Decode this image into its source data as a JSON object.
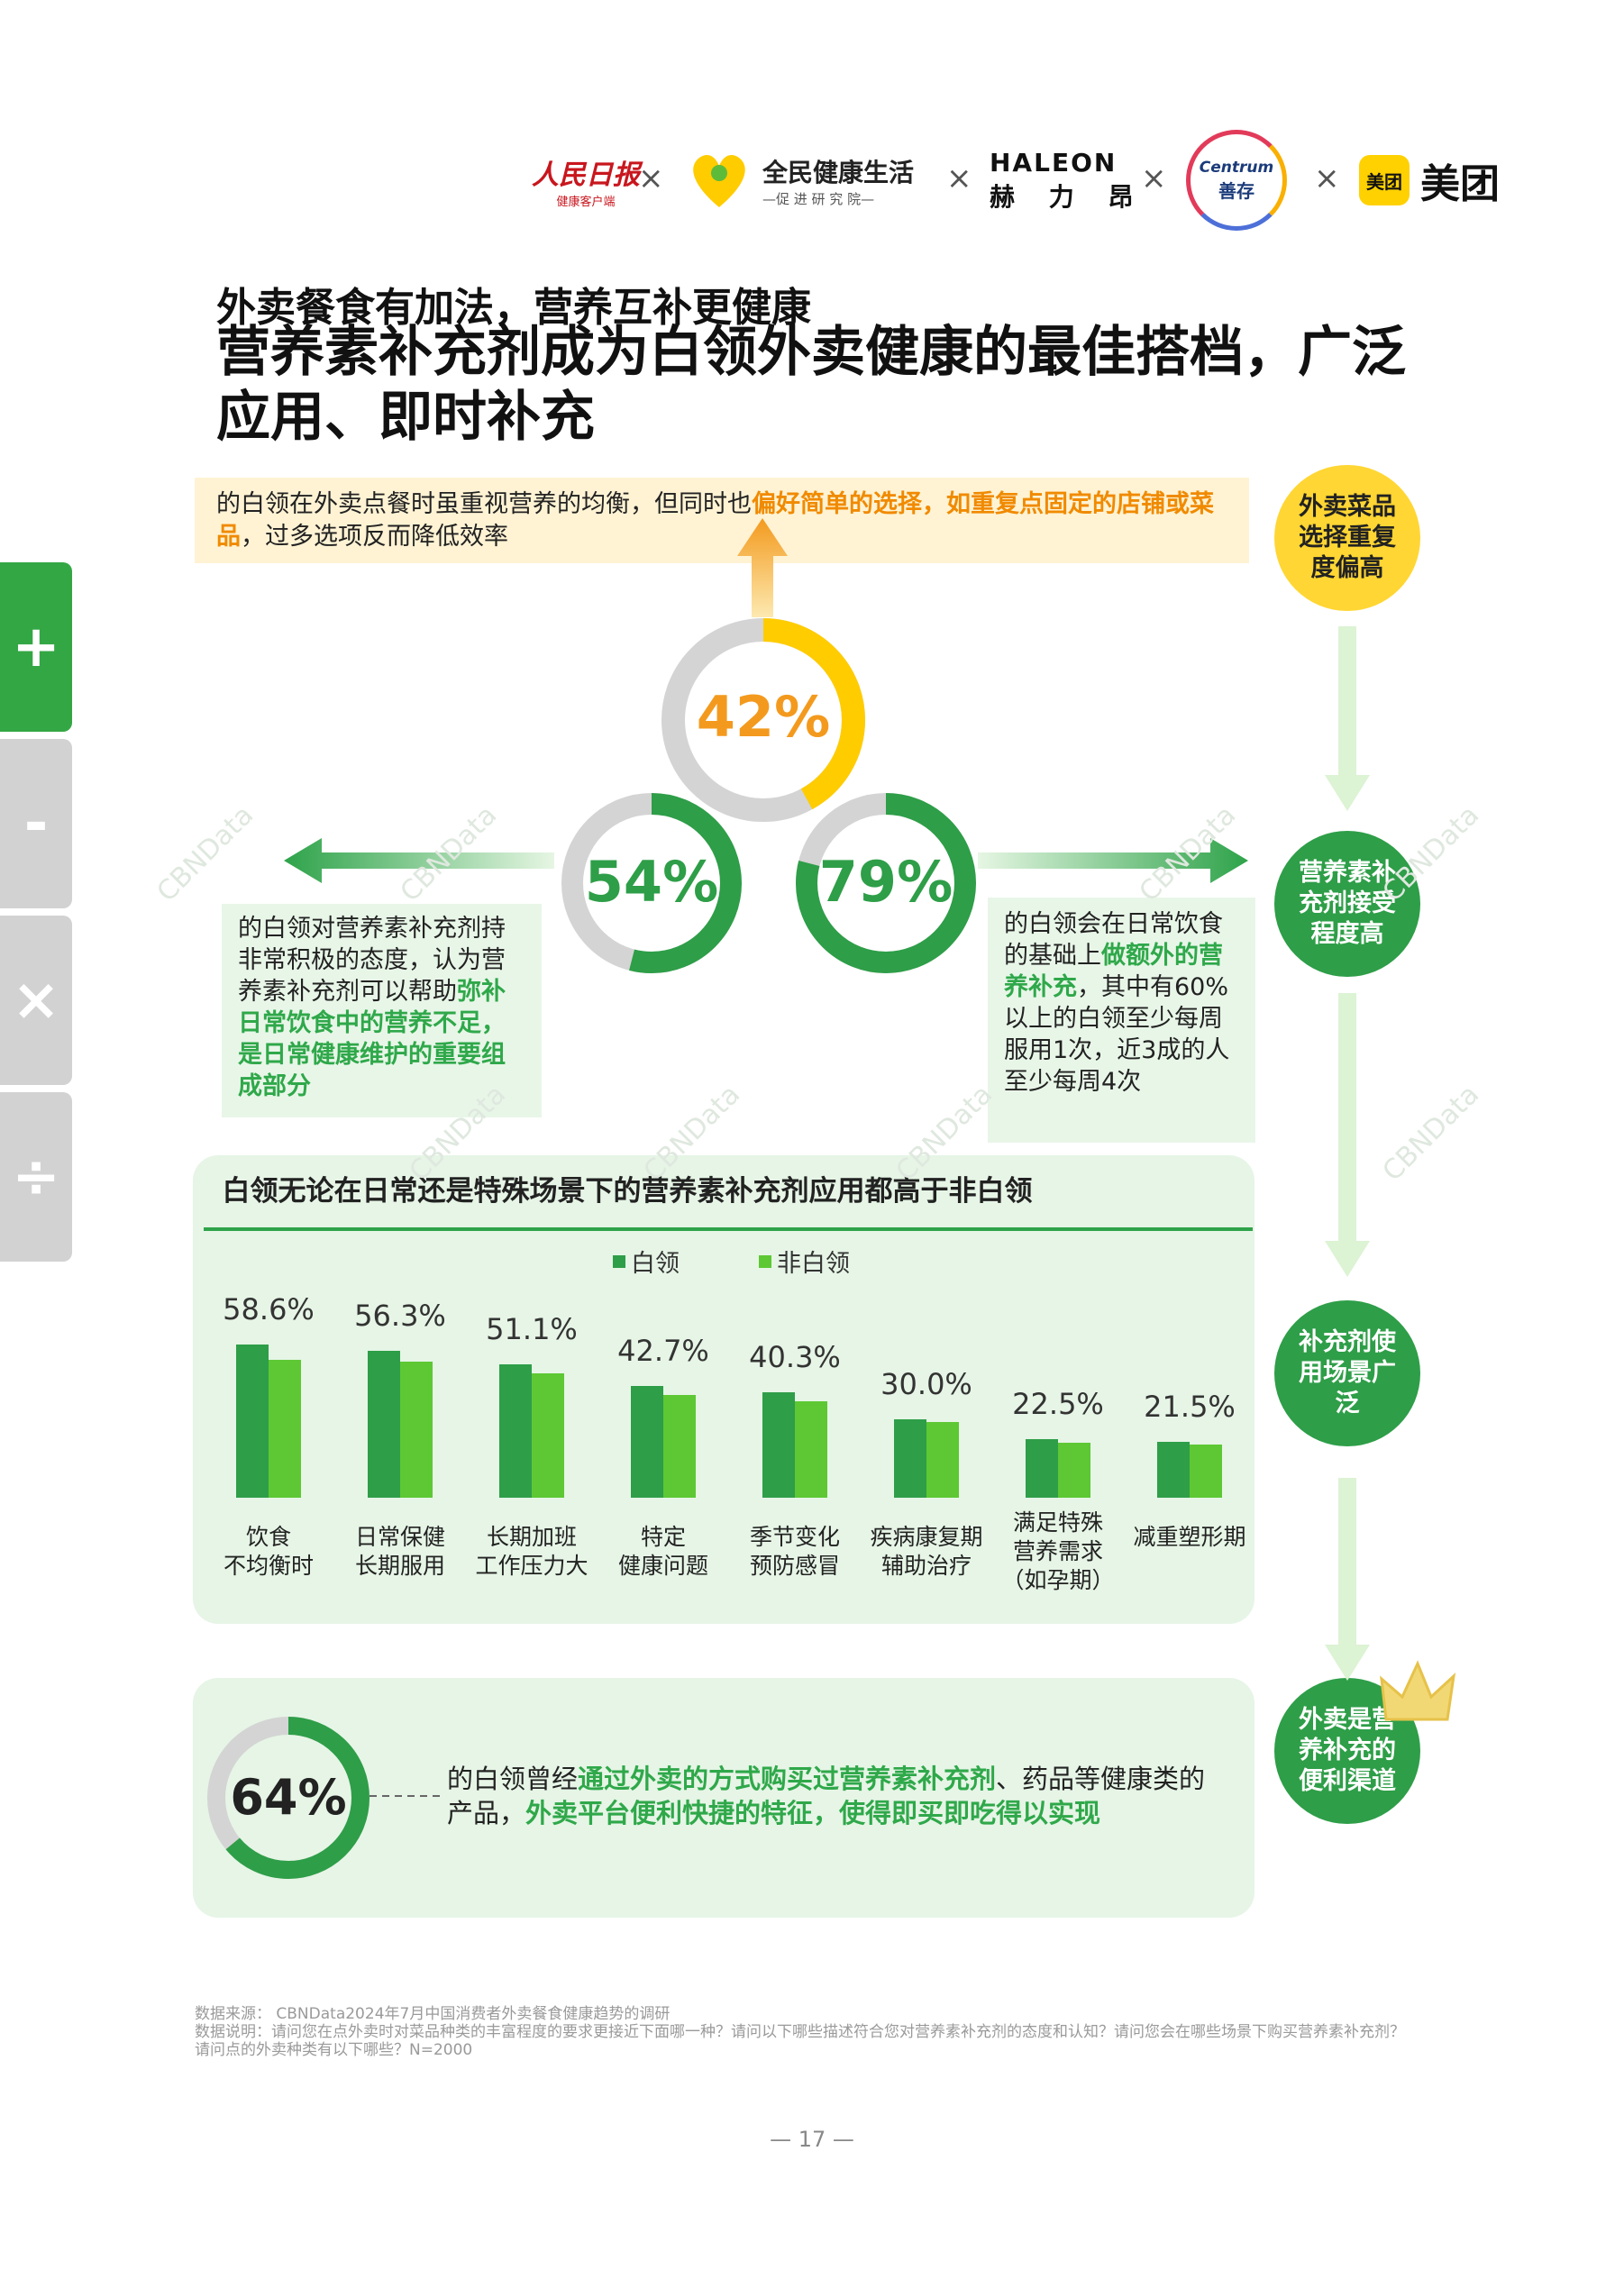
{
  "header": {
    "logos": [
      {
        "name": "人民日报",
        "sub": "健康客户端"
      },
      {
        "name": "全民健康生活",
        "sub": "—促 进 研 究 院—"
      },
      {
        "name": "HALEON",
        "sub": "赫 力 昂"
      },
      {
        "name": "Centrum",
        "sub": "善存"
      },
      {
        "name": "美团",
        "badge": "美团"
      }
    ],
    "separator": "×"
  },
  "title_small": "外卖餐食有加法，营养互补更健康",
  "title_large": "营养素补充剂成为白领外卖健康的最佳搭档，广泛应用、即时补充",
  "toolbar": {
    "zoom_in": "+",
    "zoom_out": "-",
    "multiply": "×",
    "divide": "÷"
  },
  "side_steps": [
    "外卖菜品选择重复度偏高",
    "营养素补充剂接受程度高",
    "补充剂使用场景广泛",
    "外卖是营养补充的便利渠道"
  ],
  "donuts": [
    {
      "label": "42%",
      "value": 42,
      "color": "#ffcc00"
    },
    {
      "label": "54%",
      "value": 54,
      "color": "#2e9e48"
    },
    {
      "label": "79%",
      "value": 79,
      "color": "#2e9e48"
    }
  ],
  "top_box": {
    "t1": "的白领在外卖点餐时虽重视营养的均衡，但同时也",
    "hl": "偏好简单的选择，如重复点固定的店铺或菜品",
    "t2": "，过多选项反而降低效率"
  },
  "left_box": {
    "t1": "的白领对营养素补充剂持非常积极的态度，认为营养素补充剂可以帮助",
    "hl": "弥补日常饮食中的营养不足，是日常健康维护的重要组成部分"
  },
  "right_box": {
    "t1": "的白领会在日常饮食的基础上",
    "hl": "做额外的营养补充",
    "t2": "，其中有60%以上的白领至少每周服用1次，近3成的人至少每周4次"
  },
  "chart_data": {
    "type": "bar",
    "title": "白领无论在日常还是特殊场景下的营养素补充剂应用都高于非白领",
    "categories": [
      "饮食\n不均衡时",
      "日常保健\n长期服用",
      "长期加班\n工作压力大",
      "特定\n健康问题",
      "季节变化\n预防感冒",
      "疾病康复期\n辅助治疗",
      "满足特殊\n营养需求\n（如孕期）",
      "减重塑形期"
    ],
    "series": [
      {
        "name": "白领",
        "color": "#2e9e48",
        "values": [
          58.6,
          56.3,
          51.1,
          42.7,
          40.3,
          30.0,
          22.5,
          21.5
        ]
      },
      {
        "name": "非白领",
        "color": "#5dc833",
        "values": [
          52.8,
          51.9,
          47.6,
          39.2,
          37.0,
          29.0,
          20.9,
          20.2
        ]
      }
    ],
    "value_labels": [
      "58.6%",
      "56.3%",
      "51.1%",
      "42.7%",
      "40.3%",
      "30.0%",
      "22.5%",
      "21.5%"
    ],
    "legend": "top-center"
  },
  "bottom": {
    "donut": {
      "label": "64%",
      "value": 64,
      "color": "#2e9e48"
    },
    "t1": "的白领曾经",
    "hl1": "通过外卖的方式购买过营养素补充剂",
    "t2": "、药品等健康类的产品，",
    "hl2": "外卖平台便利快捷的特征，使得即买即吃得以实现"
  },
  "source": {
    "line1": "数据来源：  CBNData2024年7月中国消费者外卖餐食健康趋势的调研",
    "line2": "数据说明：请问您在点外卖时对菜品种类的丰富程度的要求更接近下面哪一种？请问以下哪些描述符合您对营养素补充剂的态度和认知？请问您会在哪些场景下购买营养素补充剂？请问点的外卖种类有以下哪些？N=2000"
  },
  "page_number": "—  17  —",
  "watermark": "CBNData"
}
